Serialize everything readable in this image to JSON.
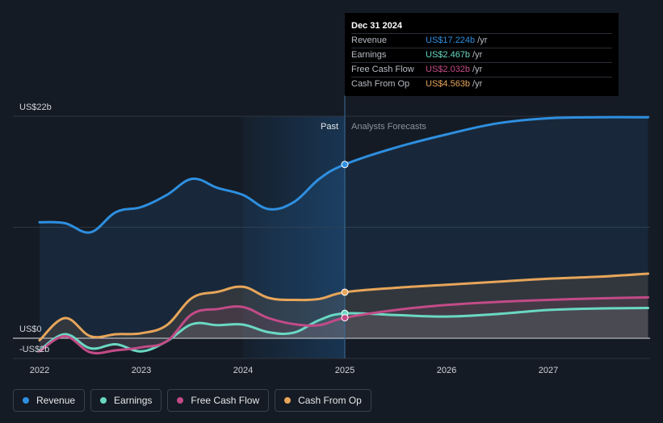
{
  "chart_data": {
    "type": "area",
    "y_axis": {
      "top_label": "US$22b",
      "zero_label": "US$0",
      "neg_label": "-US$2b",
      "ylim": [
        -2,
        22
      ]
    },
    "x_ticks": [
      "2022",
      "2023",
      "2024",
      "2025",
      "2026",
      "2027"
    ],
    "past_label": "Past",
    "forecast_label": "Analysts Forecasts",
    "series": [
      {
        "name": "Revenue",
        "color": "#2e8fe0",
        "points": [
          [
            2022.0,
            11.5
          ],
          [
            2022.25,
            11.4
          ],
          [
            2022.5,
            10.5
          ],
          [
            2022.75,
            12.5
          ],
          [
            2023.0,
            13.0
          ],
          [
            2023.25,
            14.2
          ],
          [
            2023.5,
            15.8
          ],
          [
            2023.75,
            14.9
          ],
          [
            2024.0,
            14.2
          ],
          [
            2024.25,
            12.8
          ],
          [
            2024.5,
            13.5
          ],
          [
            2024.75,
            15.8
          ],
          [
            2025.0,
            17.224
          ],
          [
            2025.5,
            18.9
          ],
          [
            2026.0,
            20.2
          ],
          [
            2026.5,
            21.3
          ],
          [
            2027.0,
            21.8
          ],
          [
            2027.5,
            21.9
          ],
          [
            2027.98,
            21.9
          ]
        ]
      },
      {
        "name": "Earnings",
        "color": "#6ad8c3",
        "points": [
          [
            2022.0,
            -1.2
          ],
          [
            2022.25,
            0.4
          ],
          [
            2022.5,
            -1.0
          ],
          [
            2022.75,
            -0.6
          ],
          [
            2023.0,
            -1.3
          ],
          [
            2023.25,
            -0.3
          ],
          [
            2023.5,
            1.4
          ],
          [
            2023.75,
            1.3
          ],
          [
            2024.0,
            1.35
          ],
          [
            2024.25,
            0.6
          ],
          [
            2024.5,
            0.55
          ],
          [
            2024.75,
            1.8
          ],
          [
            2025.0,
            2.467
          ],
          [
            2025.5,
            2.3
          ],
          [
            2026.0,
            2.15
          ],
          [
            2026.5,
            2.4
          ],
          [
            2027.0,
            2.8
          ],
          [
            2027.5,
            2.95
          ],
          [
            2027.98,
            3.0
          ]
        ]
      },
      {
        "name": "Free Cash Flow",
        "color": "#c24b87",
        "points": [
          [
            2022.0,
            -1.3
          ],
          [
            2022.25,
            0.2
          ],
          [
            2022.5,
            -1.4
          ],
          [
            2022.75,
            -1.2
          ],
          [
            2023.0,
            -0.9
          ],
          [
            2023.25,
            -0.3
          ],
          [
            2023.5,
            2.4
          ],
          [
            2023.75,
            2.9
          ],
          [
            2024.0,
            3.1
          ],
          [
            2024.25,
            2.0
          ],
          [
            2024.5,
            1.4
          ],
          [
            2024.75,
            1.3
          ],
          [
            2025.0,
            2.032
          ],
          [
            2025.5,
            2.8
          ],
          [
            2026.0,
            3.3
          ],
          [
            2026.5,
            3.6
          ],
          [
            2027.0,
            3.8
          ],
          [
            2027.5,
            3.95
          ],
          [
            2027.98,
            4.05
          ]
        ]
      },
      {
        "name": "Cash From Op",
        "color": "#e7a55a",
        "points": [
          [
            2022.0,
            -0.2
          ],
          [
            2022.25,
            2.0
          ],
          [
            2022.5,
            0.2
          ],
          [
            2022.75,
            0.4
          ],
          [
            2023.0,
            0.5
          ],
          [
            2023.25,
            1.3
          ],
          [
            2023.5,
            4.0
          ],
          [
            2023.75,
            4.6
          ],
          [
            2024.0,
            5.1
          ],
          [
            2024.25,
            4.0
          ],
          [
            2024.5,
            3.8
          ],
          [
            2024.75,
            3.9
          ],
          [
            2025.0,
            4.563
          ],
          [
            2025.5,
            5.0
          ],
          [
            2026.0,
            5.3
          ],
          [
            2026.5,
            5.6
          ],
          [
            2027.0,
            5.9
          ],
          [
            2027.5,
            6.1
          ],
          [
            2027.98,
            6.4
          ]
        ]
      }
    ]
  },
  "tooltip": {
    "date": "Dec 31 2024",
    "rows": [
      {
        "label": "Revenue",
        "value": "US$17.224b",
        "unit": "/yr",
        "color": "#2e8fe0"
      },
      {
        "label": "Earnings",
        "value": "US$2.467b",
        "unit": "/yr",
        "color": "#6ad8c3"
      },
      {
        "label": "Free Cash Flow",
        "value": "US$2.032b",
        "unit": "/yr",
        "color": "#c24b87"
      },
      {
        "label": "Cash From Op",
        "value": "US$4.563b",
        "unit": "/yr",
        "color": "#e7a55a"
      }
    ]
  },
  "legend": [
    {
      "label": "Revenue",
      "color": "#2e8fe0"
    },
    {
      "label": "Earnings",
      "color": "#6ad8c3"
    },
    {
      "label": "Free Cash Flow",
      "color": "#c24b87"
    },
    {
      "label": "Cash From Op",
      "color": "#e7a55a"
    }
  ]
}
